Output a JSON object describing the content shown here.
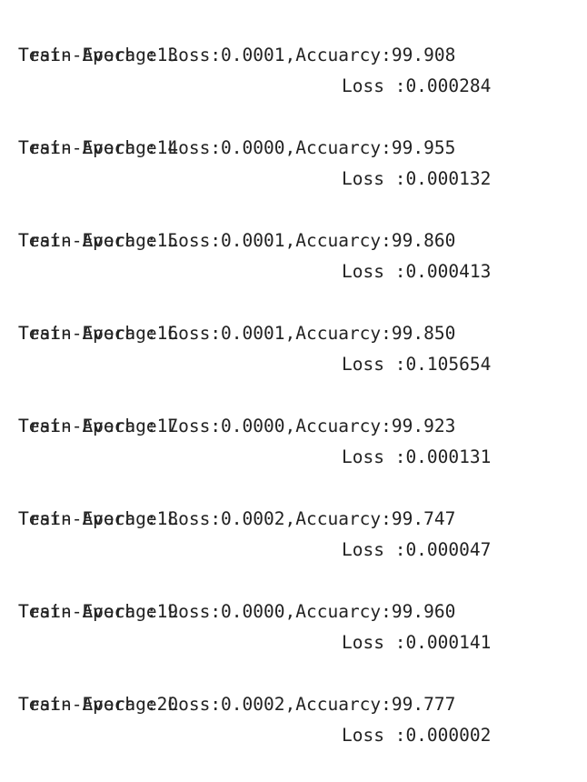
{
  "log": [
    {
      "train_epoch": "Train Epoch :13",
      "train_loss": "Loss :0.000284",
      "test": "Test--Average Loss:0.0001,Accuarcy:99.908"
    },
    {
      "train_epoch": "Train Epoch :14",
      "train_loss": "Loss :0.000132",
      "test": "Test--Average Loss:0.0000,Accuarcy:99.955"
    },
    {
      "train_epoch": "Train Epoch :15",
      "train_loss": "Loss :0.000413",
      "test": "Test--Average Loss:0.0001,Accuarcy:99.860"
    },
    {
      "train_epoch": "Train Epoch :16",
      "train_loss": "Loss :0.105654",
      "test": "Test--Average Loss:0.0001,Accuarcy:99.850"
    },
    {
      "train_epoch": "Train Epoch :17",
      "train_loss": "Loss :0.000131",
      "test": "Test--Average Loss:0.0000,Accuarcy:99.923"
    },
    {
      "train_epoch": "Train Epoch :18",
      "train_loss": "Loss :0.000047",
      "test": "Test--Average Loss:0.0002,Accuarcy:99.747"
    },
    {
      "train_epoch": "Train Epoch :19",
      "train_loss": "Loss :0.000141",
      "test": "Test--Average Loss:0.0000,Accuarcy:99.960"
    },
    {
      "train_epoch": "Train Epoch :20",
      "train_loss": "Loss :0.000002",
      "test": "Test--Average Loss:0.0002,Accuarcy:99.777"
    }
  ]
}
